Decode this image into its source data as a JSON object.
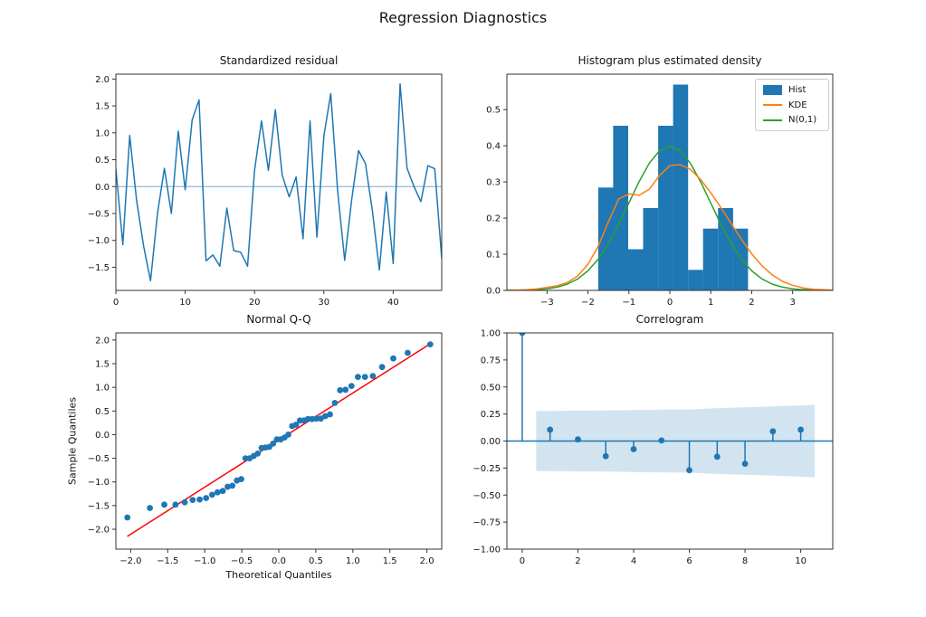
{
  "figure": {
    "suptitle": "Regression Diagnostics"
  },
  "colors": {
    "series_blue": "#1f77b4",
    "kde_orange": "#ff7f0e",
    "normal_green": "#2ca02c",
    "fit_red": "#ff0000",
    "conf_band_blue": "#1f77b4",
    "spine": "#333333",
    "tick_text": "#141414"
  },
  "chart_data": [
    {
      "id": "residuals",
      "type": "line",
      "title": "Standardized residual",
      "x": [
        0,
        1,
        2,
        3,
        4,
        5,
        6,
        7,
        8,
        9,
        10,
        11,
        12,
        13,
        14,
        15,
        16,
        17,
        18,
        19,
        20,
        21,
        22,
        23,
        24,
        25,
        26,
        27,
        28,
        29,
        30,
        31,
        32,
        33,
        34,
        35,
        36,
        37,
        38,
        39,
        40,
        41,
        42,
        43,
        44,
        45,
        46,
        47
      ],
      "values": [
        0.33,
        -1.08,
        0.95,
        -0.27,
        -1.1,
        -1.75,
        -0.5,
        0.34,
        -0.5,
        1.03,
        -0.06,
        1.24,
        1.61,
        -1.38,
        -1.27,
        -1.48,
        -0.4,
        -1.19,
        -1.22,
        -1.48,
        0.3,
        1.22,
        0.3,
        1.43,
        0.21,
        -0.19,
        0.18,
        -0.97,
        1.22,
        -0.94,
        0.94,
        1.73,
        -0.1,
        -1.37,
        -0.26,
        0.67,
        0.43,
        -0.45,
        -1.55,
        -0.1,
        -1.43,
        1.91,
        0.34,
        0.0,
        -0.28,
        0.39,
        0.33,
        -1.34
      ],
      "zero_line_y": 0,
      "xlim": [
        0,
        47
      ],
      "ylim": [
        -1.93,
        2.09
      ],
      "xticks": [
        0,
        10,
        20,
        30,
        40
      ],
      "yticks": [
        2.0,
        1.5,
        1.0,
        0.5,
        0.0,
        -0.5,
        -1.0,
        -1.5
      ],
      "xtick_decimals": 0,
      "ytick_decimals": 1
    },
    {
      "id": "histogram",
      "type": "histogram",
      "title": "Histogram plus estimated density",
      "legend": [
        "Hist",
        "KDE",
        "N(0,1)"
      ],
      "bins": {
        "start": -1.75,
        "width": 0.366,
        "heights": [
          0.2846,
          0.4554,
          0.1139,
          0.2277,
          0.4554,
          0.5693,
          0.0569,
          0.1708,
          0.2277,
          0.1708
        ]
      },
      "curve_x": [
        -3.98,
        -3.75,
        -3.5,
        -3.25,
        -3.0,
        -2.75,
        -2.5,
        -2.25,
        -2.0,
        -1.75,
        -1.5,
        -1.25,
        -1.0,
        -0.75,
        -0.5,
        -0.25,
        0,
        0.25,
        0.5,
        0.75,
        1.0,
        1.25,
        1.5,
        1.75,
        2.0,
        2.25,
        2.5,
        2.75,
        3.0,
        3.25,
        3.5,
        3.75,
        3.98
      ],
      "kde_y": [
        0.001,
        0.001,
        0.002,
        0.004,
        0.008,
        0.013,
        0.022,
        0.04,
        0.072,
        0.122,
        0.19,
        0.253,
        0.267,
        0.263,
        0.28,
        0.318,
        0.345,
        0.348,
        0.335,
        0.307,
        0.27,
        0.229,
        0.185,
        0.141,
        0.101,
        0.068,
        0.043,
        0.025,
        0.014,
        0.007,
        0.003,
        0.002,
        0.001
      ],
      "normal_y": [
        0.0001,
        0.0004,
        0.0009,
        0.002,
        0.0044,
        0.0091,
        0.0175,
        0.0317,
        0.054,
        0.0863,
        0.1295,
        0.1826,
        0.242,
        0.3011,
        0.3521,
        0.3867,
        0.3989,
        0.3867,
        0.3521,
        0.3011,
        0.242,
        0.1826,
        0.1295,
        0.0863,
        0.054,
        0.0317,
        0.0175,
        0.0091,
        0.0044,
        0.002,
        0.0009,
        0.0004,
        0.0001
      ],
      "xlim": [
        -3.98,
        3.98
      ],
      "ylim": [
        0,
        0.598
      ],
      "xticks": [
        -3,
        -2,
        -1,
        0,
        1,
        2,
        3
      ],
      "yticks": [
        0.0,
        0.1,
        0.2,
        0.3,
        0.4,
        0.5
      ],
      "xtick_decimals": 0,
      "ytick_decimals": 1
    },
    {
      "id": "qq",
      "type": "scatter",
      "title": "Normal Q-Q",
      "xlabel": "Theoretical Quantiles",
      "ylabel": "Sample Quantiles",
      "x": [
        -2.045,
        -1.74,
        -1.546,
        -1.394,
        -1.27,
        -1.163,
        -1.068,
        -0.981,
        -0.901,
        -0.827,
        -0.757,
        -0.69,
        -0.627,
        -0.566,
        -0.507,
        -0.45,
        -0.393,
        -0.339,
        -0.285,
        -0.232,
        -0.18,
        -0.128,
        -0.077,
        -0.026,
        0.026,
        0.077,
        0.128,
        0.18,
        0.232,
        0.285,
        0.339,
        0.393,
        0.45,
        0.507,
        0.566,
        0.627,
        0.69,
        0.757,
        0.827,
        0.901,
        0.981,
        1.068,
        1.163,
        1.27,
        1.394,
        1.546,
        1.74,
        2.045
      ],
      "y": [
        -1.75,
        -1.55,
        -1.48,
        -1.48,
        -1.43,
        -1.38,
        -1.37,
        -1.34,
        -1.27,
        -1.22,
        -1.19,
        -1.1,
        -1.08,
        -0.97,
        -0.94,
        -0.5,
        -0.5,
        -0.45,
        -0.4,
        -0.28,
        -0.27,
        -0.26,
        -0.19,
        -0.1,
        -0.1,
        -0.06,
        0.0,
        0.18,
        0.21,
        0.3,
        0.3,
        0.33,
        0.33,
        0.34,
        0.34,
        0.39,
        0.43,
        0.67,
        0.94,
        0.95,
        1.03,
        1.22,
        1.22,
        1.24,
        1.43,
        1.61,
        1.73,
        1.91
      ],
      "fit_line": {
        "x1": -2.045,
        "y1": -2.15,
        "x2": 2.045,
        "y2": 1.92
      },
      "xlim": [
        -2.2,
        2.2
      ],
      "ylim": [
        -2.42,
        2.15
      ],
      "xticks": [
        -2.0,
        -1.5,
        -1.0,
        -0.5,
        0.0,
        0.5,
        1.0,
        1.5,
        2.0
      ],
      "yticks": [
        2.0,
        1.5,
        1.0,
        0.5,
        0.0,
        -0.5,
        -1.0,
        -1.5,
        -2.0
      ],
      "xtick_decimals": 1,
      "ytick_decimals": 1
    },
    {
      "id": "correlogram",
      "type": "stem",
      "title": "Correlogram",
      "lags": [
        0,
        1,
        2,
        3,
        4,
        5,
        6,
        7,
        8,
        9,
        10
      ],
      "acf": [
        1.0,
        0.105,
        0.015,
        -0.14,
        -0.075,
        0.005,
        -0.27,
        -0.145,
        -0.21,
        0.09,
        0.105
      ],
      "conf_band": {
        "x": [
          0.5,
          1,
          2,
          3,
          4,
          5,
          6,
          7,
          8,
          9,
          10,
          10.5
        ],
        "bound": [
          0.277,
          0.278,
          0.28,
          0.283,
          0.287,
          0.29,
          0.292,
          0.305,
          0.312,
          0.32,
          0.33,
          0.335
        ]
      },
      "xlim": [
        -0.55,
        11.15
      ],
      "ylim": [
        -1.0,
        1.0
      ],
      "xticks": [
        0,
        2,
        4,
        6,
        8,
        10
      ],
      "yticks": [
        1.0,
        0.75,
        0.5,
        0.25,
        0.0,
        -0.25,
        -0.5,
        -0.75,
        -1.0
      ],
      "xtick_decimals": 0,
      "ytick_decimals": 2
    }
  ]
}
